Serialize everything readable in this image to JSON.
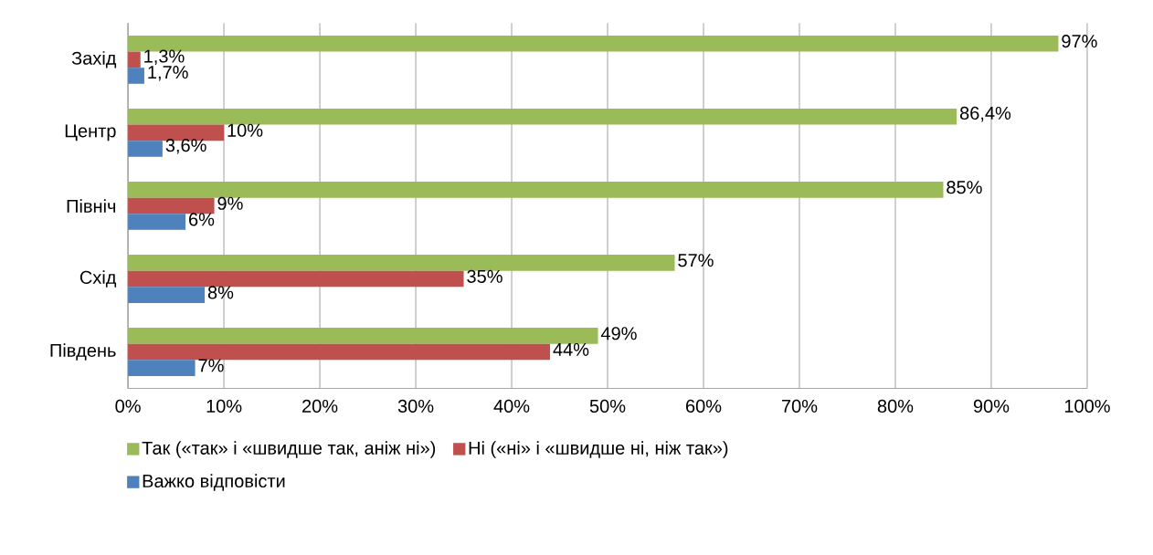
{
  "chart_data": {
    "type": "bar",
    "orientation": "horizontal",
    "categories": [
      "Захід",
      "Центр",
      "Північ",
      "Схід",
      "Південь"
    ],
    "series": [
      {
        "name": "Так («так» і «швидше так, аніж ні»)",
        "color": "#9bbb59",
        "values": [
          97,
          86.4,
          85,
          57,
          49
        ],
        "value_labels": [
          "97%",
          "86,4%",
          "85%",
          "57%",
          "49%"
        ]
      },
      {
        "name": "Ні («ні» і «швидше ні, ніж так»)",
        "color": "#c0504d",
        "values": [
          1.3,
          10,
          9,
          35,
          44
        ],
        "value_labels": [
          "1,3%",
          "10%",
          "9%",
          "35%",
          "44%"
        ]
      },
      {
        "name": "Важко відповісти",
        "color": "#4f81bd",
        "values": [
          1.7,
          3.6,
          6,
          8,
          7
        ],
        "value_labels": [
          "1,7%",
          "3,6%",
          "6%",
          "8%",
          "7%"
        ]
      }
    ],
    "xlim": [
      0,
      100
    ],
    "xticks": [
      {
        "value": 0,
        "label": "0%"
      },
      {
        "value": 10,
        "label": "10%"
      },
      {
        "value": 20,
        "label": "20%"
      },
      {
        "value": 30,
        "label": "30%"
      },
      {
        "value": 40,
        "label": "40%"
      },
      {
        "value": 50,
        "label": "50%"
      },
      {
        "value": 60,
        "label": "60%"
      },
      {
        "value": 70,
        "label": "70%"
      },
      {
        "value": 80,
        "label": "80%"
      },
      {
        "value": 90,
        "label": "90%"
      },
      {
        "value": 100,
        "label": "100%"
      }
    ],
    "grid": "x",
    "legend": "bottom"
  }
}
